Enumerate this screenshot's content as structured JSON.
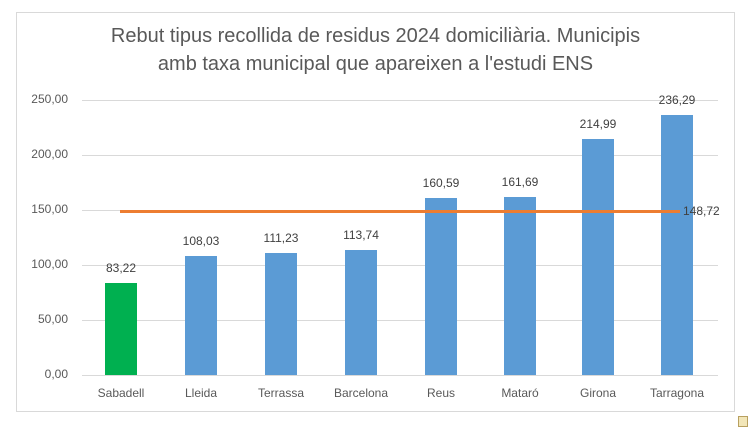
{
  "chart_data": {
    "type": "bar",
    "title": "Rebut tipus recollida de residus 2024 domiciliària. Municipis amb taxa municipal que apareixen a l'estudi ENS",
    "title_lines": [
      "Rebut tipus recollida de residus 2024 domiciliària. Municipis",
      "amb taxa municipal que apareixen a l'estudi ENS"
    ],
    "categories": [
      "Sabadell",
      "Lleida",
      "Terrassa",
      "Barcelona",
      "Reus",
      "Mataró",
      "Girona",
      "Tarragona"
    ],
    "values": [
      83.22,
      108.03,
      111.23,
      113.74,
      160.59,
      161.69,
      214.99,
      236.29
    ],
    "value_labels": [
      "83,22",
      "108,03",
      "111,23",
      "113,74",
      "160,59",
      "161,69",
      "214,99",
      "236,29"
    ],
    "bar_colors": [
      "#00b050",
      "#5b9bd5",
      "#5b9bd5",
      "#5b9bd5",
      "#5b9bd5",
      "#5b9bd5",
      "#5b9bd5",
      "#5b9bd5"
    ],
    "reference_line": {
      "value": 148.72,
      "label": "148,72",
      "color": "#ed7d31"
    },
    "xlabel": "",
    "ylabel": "",
    "ylim": [
      0,
      250
    ],
    "yticks": [
      "0,00",
      "50,00",
      "100,00",
      "150,00",
      "200,00",
      "250,00"
    ],
    "grid": true,
    "legend": "none"
  }
}
